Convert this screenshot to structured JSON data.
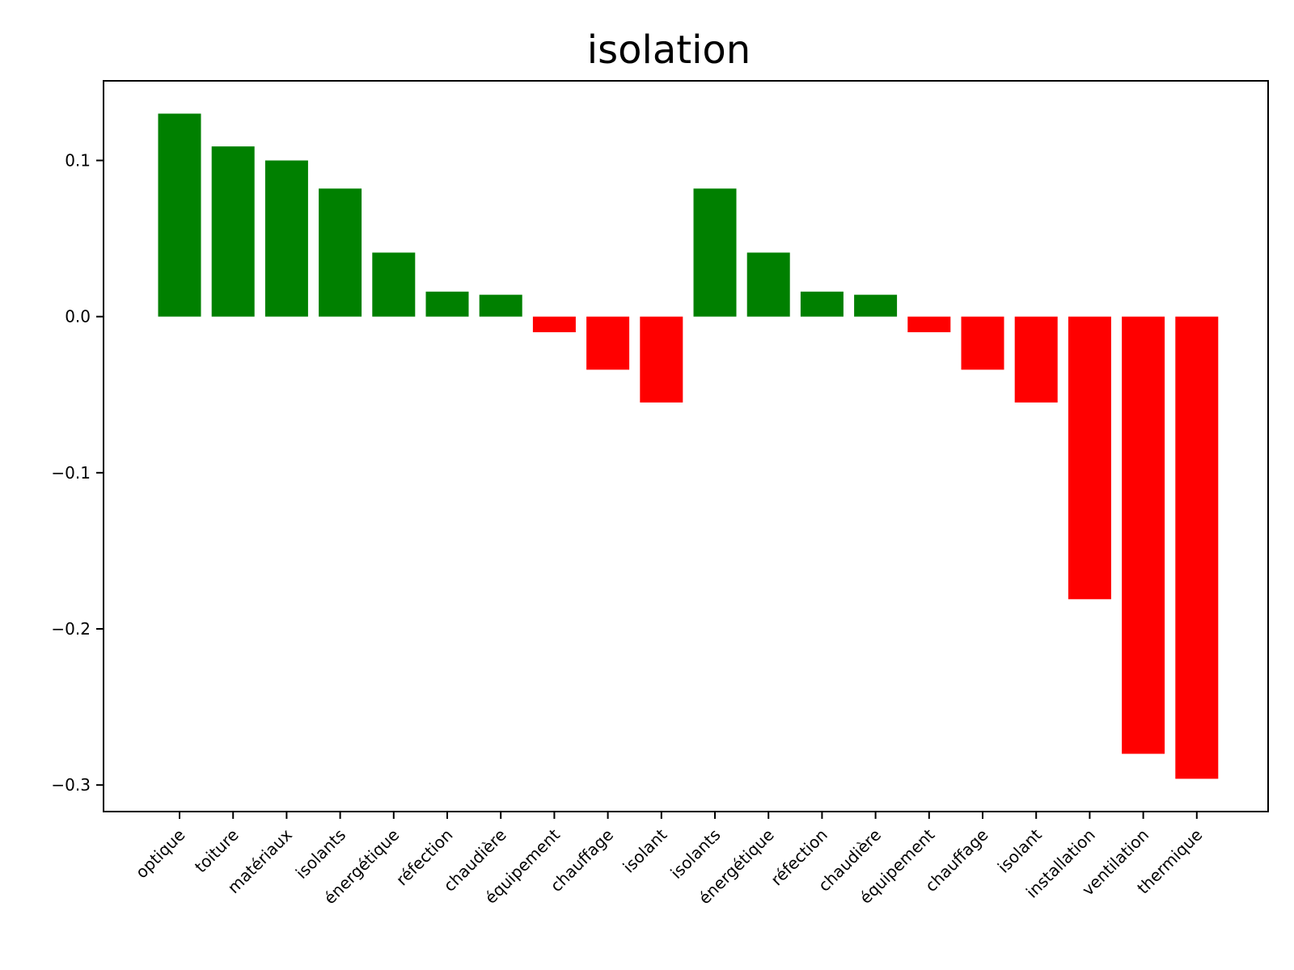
{
  "chart_data": {
    "type": "bar",
    "title": "isolation",
    "xlabel": "",
    "ylabel": "",
    "categories": [
      "optique",
      "toiture",
      "matériaux",
      "isolants",
      "énergétique",
      "réfection",
      "chaudière",
      "équipement",
      "chauffage",
      "isolant",
      "isolants",
      "énergétique",
      "réfection",
      "chaudière",
      "équipement",
      "chauffage",
      "isolant",
      "installation",
      "ventilation",
      "thermique"
    ],
    "values": [
      0.13,
      0.109,
      0.1,
      0.082,
      0.041,
      0.016,
      0.014,
      -0.01,
      -0.034,
      -0.055,
      0.082,
      0.041,
      0.016,
      0.014,
      -0.01,
      -0.034,
      -0.055,
      -0.181,
      -0.28,
      -0.296
    ],
    "ylim": [
      -0.317,
      0.151
    ],
    "yticks": [
      0.1,
      0.0,
      -0.1,
      -0.2,
      -0.3
    ],
    "ytick_labels": [
      "0.1",
      "0.0",
      "−0.1",
      "−0.2",
      "−0.3"
    ],
    "colors": {
      "positive": "#008000",
      "negative": "#ff0000",
      "axis": "#000000",
      "background": "#ffffff"
    },
    "grid": false,
    "legend": "none"
  }
}
